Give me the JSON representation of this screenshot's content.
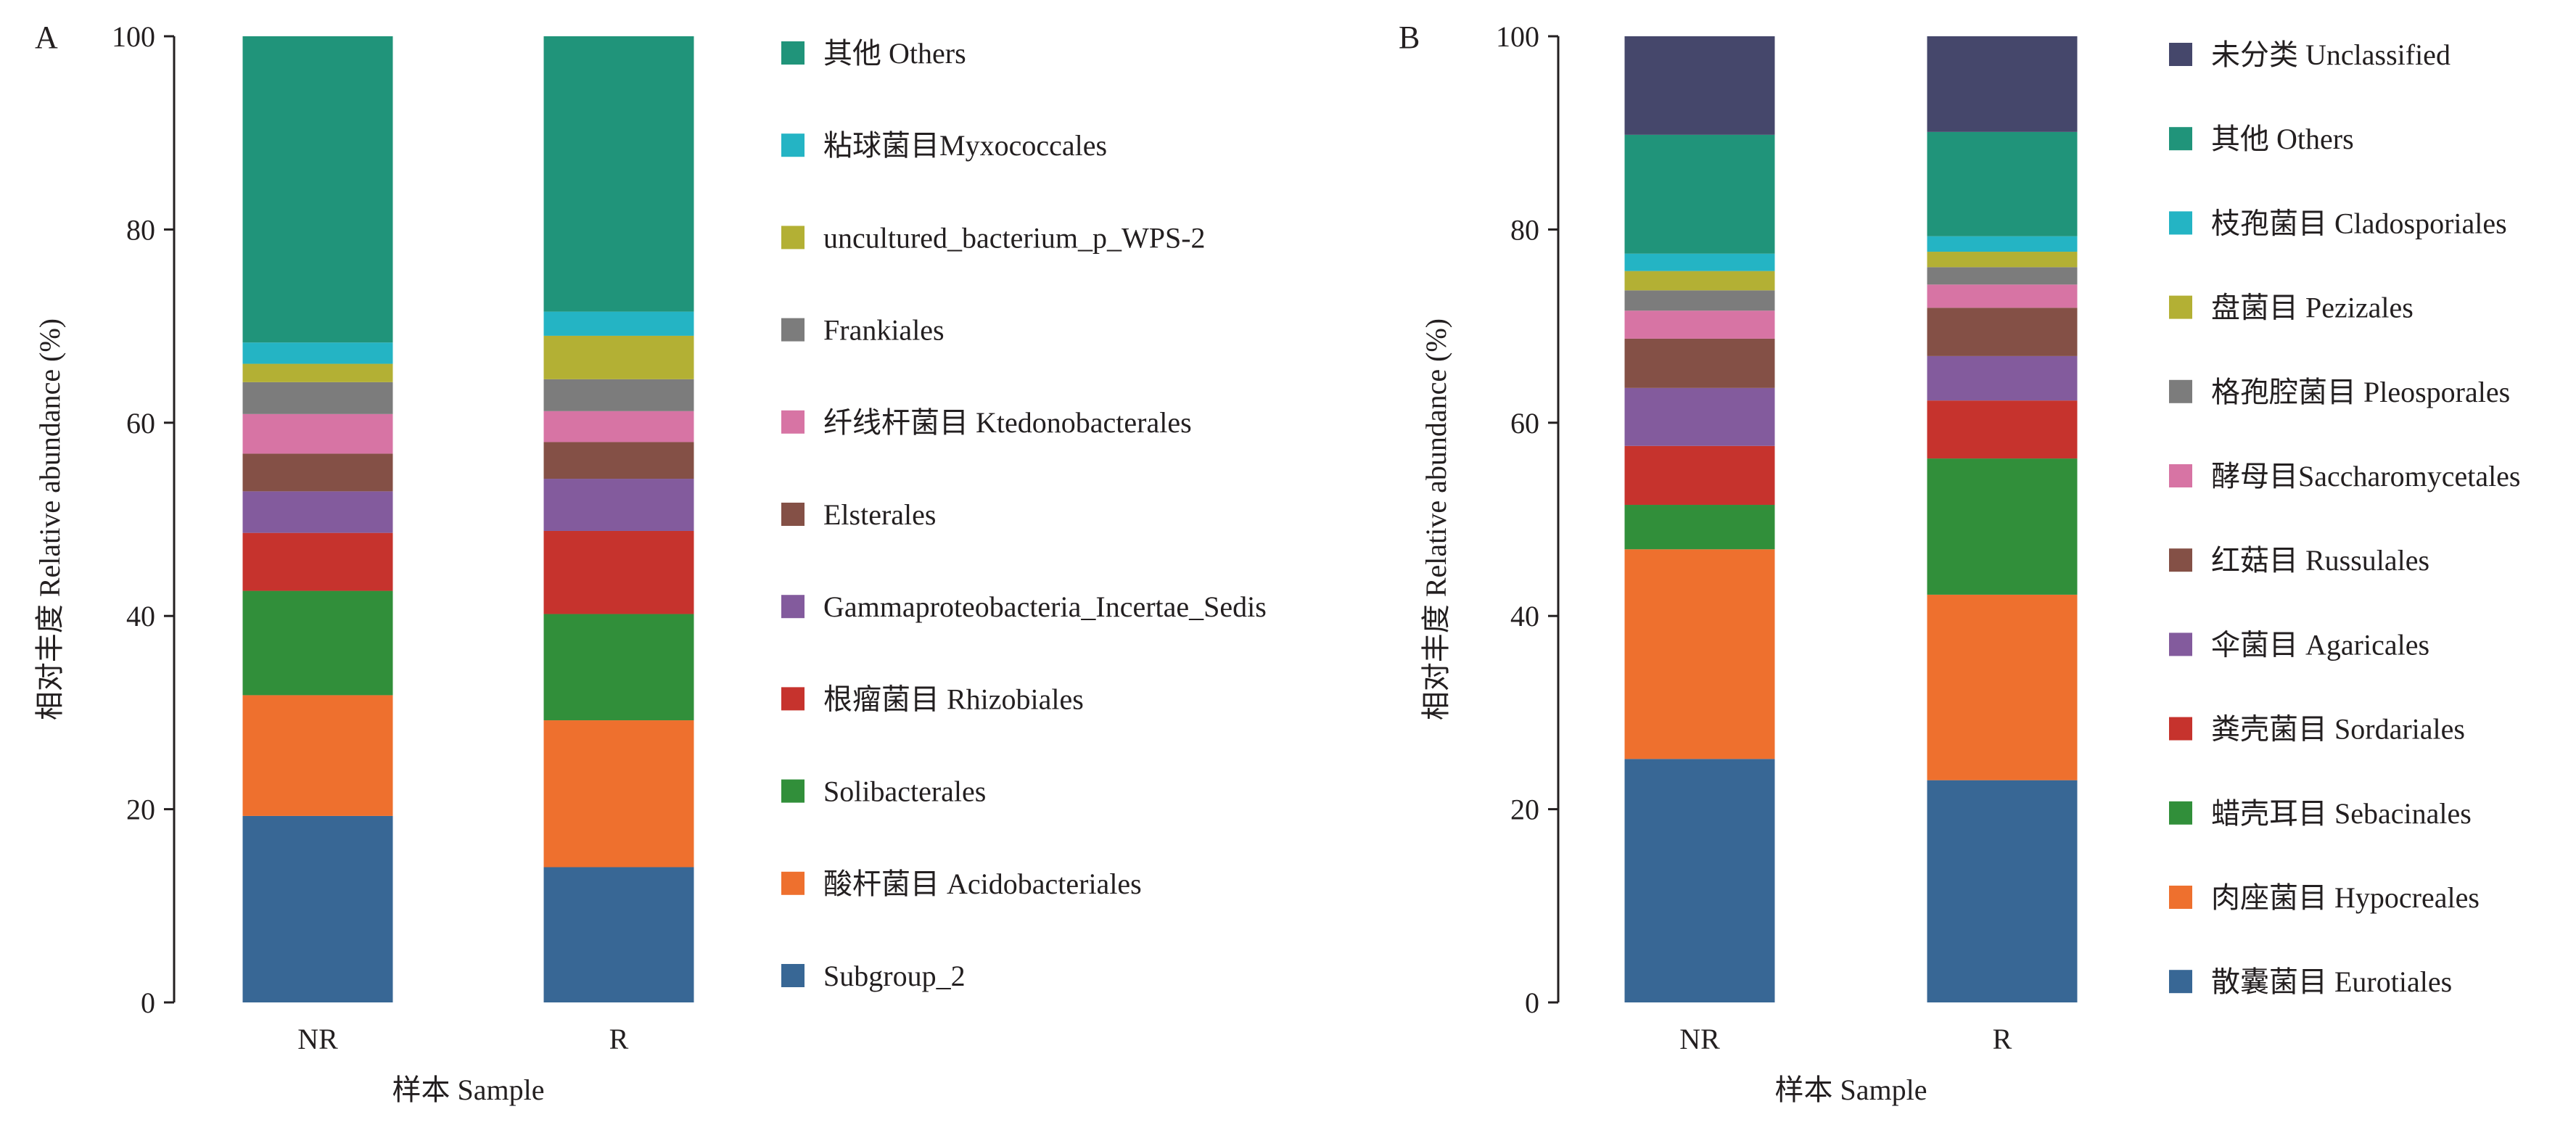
{
  "chart_data": [
    {
      "panel_label": "A",
      "type": "bar",
      "stacked": true,
      "categories": [
        "NR",
        "R"
      ],
      "xlabel": "样本 Sample",
      "ylabel": "相对丰度 Relative abundance (%)",
      "ylim": [
        0,
        100
      ],
      "yticks": [
        "0",
        "20",
        "40",
        "60",
        "80",
        "100"
      ],
      "legend_position": "right",
      "series": [
        {
          "name": "Subgroup_2",
          "color": "#386795",
          "values": [
            19.3,
            14.0
          ]
        },
        {
          "name": "酸杆菌目 Acidobacteriales",
          "color": "#ee702e",
          "values": [
            12.5,
            15.2
          ]
        },
        {
          "name": "Solibacterales",
          "color": "#318f3a",
          "values": [
            10.8,
            11.0
          ]
        },
        {
          "name": "根瘤菌目 Rhizobiales",
          "color": "#c6332d",
          "values": [
            6.0,
            8.6
          ]
        },
        {
          "name": "Gammaproteobacteria_Incertae_Sedis",
          "color": "#835b9d",
          "values": [
            4.3,
            5.4
          ]
        },
        {
          "name": "Elsterales",
          "color": "#845046",
          "values": [
            3.9,
            3.8
          ]
        },
        {
          "name": "纤线杆菌目 Ktedonobacterales",
          "color": "#d774a4",
          "values": [
            4.1,
            3.2
          ]
        },
        {
          "name": "Frankiales",
          "color": "#7c7c7c",
          "values": [
            3.3,
            3.3
          ]
        },
        {
          "name": "uncultured_bacterium_p_WPS-2",
          "color": "#b3b034",
          "values": [
            1.9,
            4.5
          ]
        },
        {
          "name": "粘球菌目Myxococcales",
          "color": "#24b4c4",
          "values": [
            2.2,
            2.5
          ]
        },
        {
          "name": "其他 Others",
          "color": "#20947a",
          "values": [
            31.7,
            28.5
          ]
        }
      ]
    },
    {
      "panel_label": "B",
      "type": "bar",
      "stacked": true,
      "categories": [
        "NR",
        "R"
      ],
      "xlabel": "样本 Sample",
      "ylabel": "相对丰度 Relative abundance (%)",
      "ylim": [
        0,
        100
      ],
      "yticks": [
        "0",
        "20",
        "40",
        "60",
        "80",
        "100"
      ],
      "legend_position": "right",
      "series": [
        {
          "name": "散囊菌目 Eurotiales",
          "color": "#386795",
          "values": [
            25.2,
            23.0
          ]
        },
        {
          "name": "肉座菌目 Hypocreales",
          "color": "#ee702e",
          "values": [
            21.7,
            19.2
          ]
        },
        {
          "name": "蜡壳耳目 Sebacinales",
          "color": "#318f3a",
          "values": [
            4.6,
            14.1
          ]
        },
        {
          "name": "粪壳菌目 Sordariales",
          "color": "#c6332d",
          "values": [
            6.1,
            6.0
          ]
        },
        {
          "name": "伞菌目 Agaricales",
          "color": "#835b9d",
          "values": [
            6.0,
            4.6
          ]
        },
        {
          "name": "红菇目  Russulales",
          "color": "#845046",
          "values": [
            5.1,
            5.0
          ]
        },
        {
          "name": "酵母目Saccharomycetales",
          "color": "#d774a4",
          "values": [
            2.9,
            2.4
          ]
        },
        {
          "name": "格孢腔菌目 Pleosporales",
          "color": "#7c7c7c",
          "values": [
            2.1,
            1.8
          ]
        },
        {
          "name": "盘菌目 Pezizales",
          "color": "#b3b034",
          "values": [
            2.0,
            1.6
          ]
        },
        {
          "name": "枝孢菌目 Cladosporiales",
          "color": "#24b4c4",
          "values": [
            1.8,
            1.6
          ]
        },
        {
          "name": "其他 Others",
          "color": "#20947a",
          "values": [
            12.3,
            10.8
          ]
        },
        {
          "name": "未分类 Unclassified",
          "color": "#45476b",
          "values": [
            10.2,
            9.9
          ]
        }
      ]
    }
  ]
}
